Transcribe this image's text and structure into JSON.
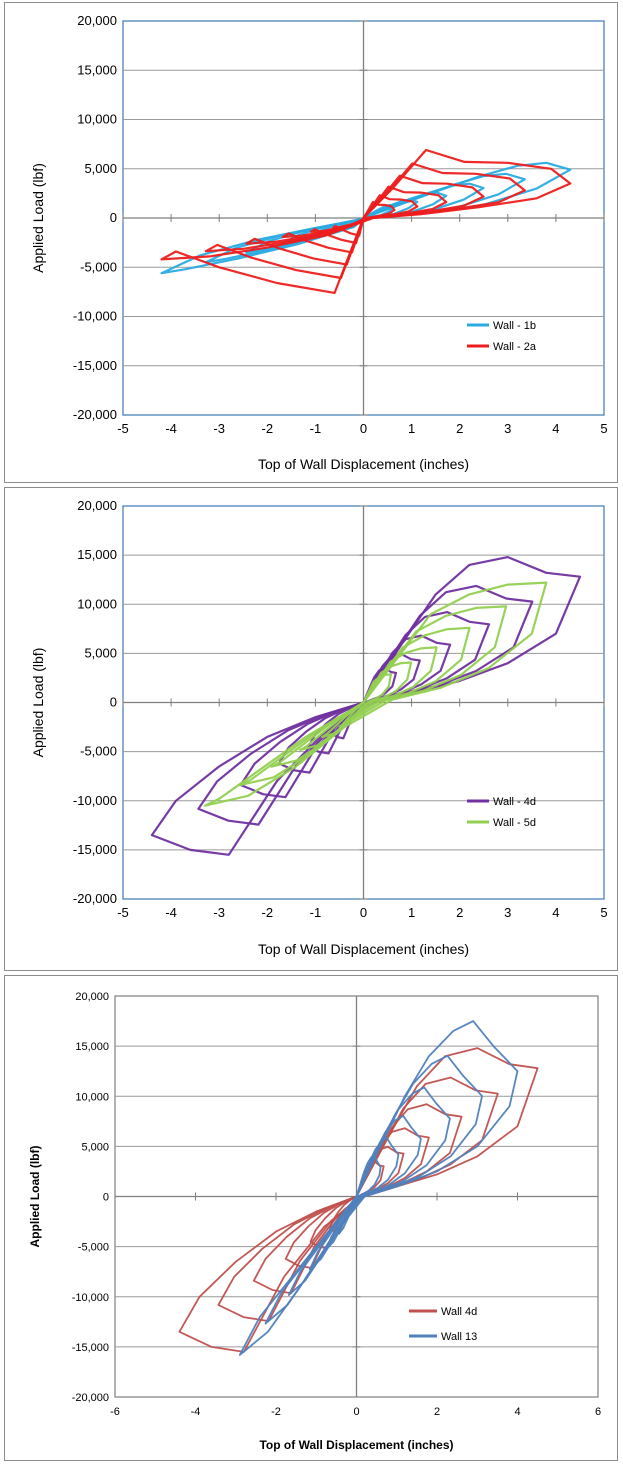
{
  "chart_data": [
    {
      "type": "line",
      "xlabel": "Top of Wall Displacement (inches)",
      "ylabel": "Applied Load (lbf)",
      "xlim": [
        -5,
        5
      ],
      "ylim": [
        -20000,
        20000
      ],
      "x_ticks": [
        "-5",
        "-4",
        "-3",
        "-2",
        "-1",
        "0",
        "1",
        "2",
        "3",
        "4",
        "5"
      ],
      "y_ticks": [
        "-20,000",
        "-15,000",
        "-10,000",
        "-5,000",
        "0",
        "5,000",
        "10,000",
        "15,000",
        "20,000"
      ],
      "grid": "horizontal",
      "legend_position": "lower-right",
      "series": [
        {
          "name": "Wall - 1b",
          "color": "#29abe2",
          "x": [
            0,
            1.4,
            2.4,
            3.2,
            3.8,
            4.3,
            3.6,
            2.4,
            1.2,
            0.2,
            -1.0,
            -2.2,
            -3.4,
            -4.2,
            -3.7,
            -2.6,
            -1.4,
            -0.2,
            0
          ],
          "y": [
            0,
            2500,
            4200,
            5300,
            5600,
            4900,
            3000,
            1200,
            500,
            0,
            -1000,
            -2200,
            -3800,
            -5600,
            -5200,
            -4100,
            -2700,
            -900,
            0
          ]
        },
        {
          "name": "Wall - 2a",
          "color": "#ee1c1c",
          "x": [
            0,
            0.6,
            1.3,
            2.1,
            3.0,
            3.9,
            4.3,
            3.6,
            2.4,
            1.2,
            0.2,
            -0.8,
            -2.0,
            -3.2,
            -4.2,
            -3.9,
            -3.0,
            -1.8,
            -0.6,
            0
          ],
          "y": [
            0,
            3000,
            6900,
            5700,
            5600,
            5000,
            3500,
            2000,
            1100,
            400,
            0,
            -1800,
            -3000,
            -3900,
            -4200,
            -3400,
            -5000,
            -6600,
            -7600,
            0
          ]
        }
      ]
    },
    {
      "type": "line",
      "xlabel": "Top of Wall Displacement (inches)",
      "ylabel": "Applied Load (lbf)",
      "xlim": [
        -5,
        5
      ],
      "ylim": [
        -20000,
        20000
      ],
      "x_ticks": [
        "-5",
        "-4",
        "-3",
        "-2",
        "-1",
        "0",
        "1",
        "2",
        "3",
        "4",
        "5"
      ],
      "y_ticks": [
        "-20,000",
        "-15,000",
        "-10,000",
        "-5,000",
        "0",
        "5,000",
        "10,000",
        "15,000",
        "20,000"
      ],
      "grid": "horizontal",
      "legend_position": "lower-right",
      "series": [
        {
          "name": "Wall - 4d",
          "color": "#7030a0",
          "x": [
            0,
            0.8,
            1.5,
            2.2,
            3.0,
            3.8,
            4.5,
            4.0,
            3.0,
            2.0,
            1.0,
            0.2,
            -0.8,
            -1.8,
            -2.8,
            -3.6,
            -4.4,
            -3.9,
            -3.0,
            -2.0,
            -1.0,
            0
          ],
          "y": [
            0,
            6000,
            11000,
            14000,
            14800,
            13200,
            12800,
            7000,
            4000,
            2200,
            1000,
            0,
            -3000,
            -8000,
            -15500,
            -15000,
            -13500,
            -10000,
            -6500,
            -3500,
            -1500,
            0
          ]
        },
        {
          "name": "Wall - 5d",
          "color": "#92d050",
          "x": [
            0,
            0.7,
            1.4,
            2.2,
            3.0,
            3.8,
            3.5,
            2.6,
            1.6,
            0.6,
            -0.4,
            -1.4,
            -2.4,
            -3.3,
            -3.0,
            -2.2,
            -1.2,
            0
          ],
          "y": [
            0,
            4500,
            9000,
            11000,
            12000,
            12200,
            7000,
            3500,
            1500,
            300,
            -2500,
            -6500,
            -9500,
            -10500,
            -9800,
            -7000,
            -3500,
            0
          ]
        }
      ]
    },
    {
      "type": "line",
      "xlabel": "Top of Wall Displacement (inches)",
      "ylabel": "Applied Load (lbf)",
      "xlim": [
        -6,
        6
      ],
      "ylim": [
        -20000,
        20000
      ],
      "x_ticks": [
        "-6",
        "-4",
        "-2",
        "0",
        "2",
        "4",
        "6"
      ],
      "y_ticks": [
        "-20,000",
        "-15,000",
        "-10,000",
        "-5,000",
        "0",
        "5,000",
        "10,000",
        "15,000",
        "20,000"
      ],
      "grid": "horizontal",
      "legend_position": "lower-right",
      "series": [
        {
          "name": "Wall 4d",
          "color": "#c0504d",
          "x": [
            0,
            0.8,
            1.5,
            2.2,
            3.0,
            3.8,
            4.5,
            4.0,
            3.0,
            2.0,
            1.0,
            0.2,
            -0.8,
            -1.8,
            -2.8,
            -3.6,
            -4.4,
            -3.9,
            -3.0,
            -2.0,
            -1.0,
            0
          ],
          "y": [
            0,
            6000,
            11000,
            14000,
            14800,
            13200,
            12800,
            7000,
            4000,
            2200,
            1000,
            0,
            -3000,
            -8000,
            -15500,
            -15000,
            -13500,
            -10000,
            -6500,
            -3500,
            -1500,
            0
          ]
        },
        {
          "name": "Wall 13",
          "color": "#4f81bd",
          "x": [
            0,
            0.6,
            1.2,
            1.8,
            2.4,
            2.9,
            3.4,
            4.0,
            3.8,
            3.0,
            2.0,
            1.0,
            0.2,
            -0.6,
            -1.4,
            -2.2,
            -2.9,
            -2.4,
            -1.6,
            -0.8,
            0
          ],
          "y": [
            0,
            5000,
            10000,
            14000,
            16500,
            17500,
            15000,
            12500,
            9000,
            5000,
            2500,
            1000,
            0,
            -4000,
            -9000,
            -13500,
            -15800,
            -12000,
            -8000,
            -4000,
            0
          ]
        }
      ]
    }
  ]
}
